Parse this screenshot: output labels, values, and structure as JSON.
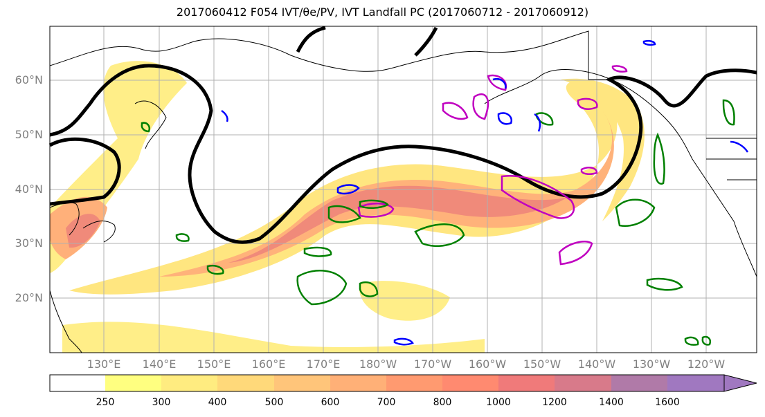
{
  "title": "2017060412 F054 IVT/θe/PV, IVT Landfall PC (2017060712 - 2017060912)",
  "map": {
    "lat_labels": [
      "60°N",
      "50°N",
      "40°N",
      "30°N",
      "20°N"
    ],
    "lon_labels": [
      "130°E",
      "140°E",
      "150°E",
      "160°E",
      "170°E",
      "180°W",
      "170°W",
      "160°W",
      "150°W",
      "140°W",
      "130°W",
      "120°W"
    ]
  },
  "colorbar": {
    "levels": [
      "250",
      "300",
      "400",
      "500",
      "600",
      "700",
      "800",
      "1000",
      "1200",
      "1400",
      "1600"
    ],
    "colors": [
      "#ffff80",
      "#ffec80",
      "#ffd97a",
      "#ffc57a",
      "#ffb077",
      "#ff9a70",
      "#ff8a70",
      "#f07a7a",
      "#d87a8a",
      "#b07aa8",
      "#a078c0"
    ]
  },
  "colors": {
    "jet_contour": "#000000",
    "pv_contour": "#c000c0",
    "green_contour": "#008000",
    "blue_contour": "#0000ff",
    "grid": "#b0b0b0"
  }
}
